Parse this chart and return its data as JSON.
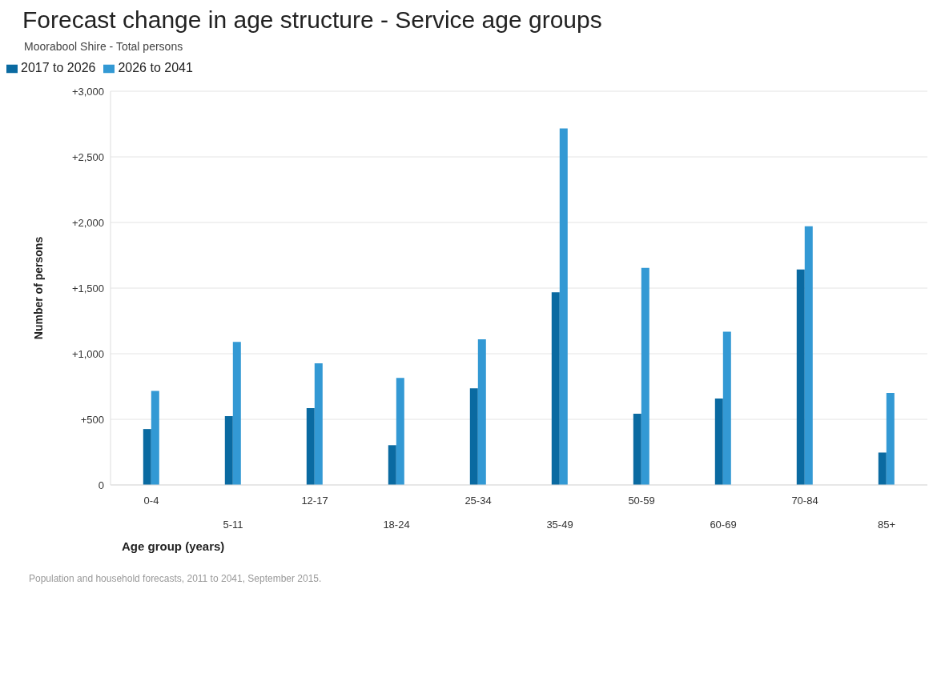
{
  "chart_data": {
    "type": "bar",
    "title": "Forecast change in age structure - Service age groups",
    "subtitle": "Moorabool Shire - Total persons",
    "xlabel": "Age group (years)",
    "ylabel": "Number of persons",
    "categories": [
      "0-4",
      "5-11",
      "12-17",
      "18-24",
      "25-34",
      "35-49",
      "50-59",
      "60-69",
      "70-84",
      "85+"
    ],
    "series": [
      {
        "name": "2017 to 2026",
        "color": "#0a6aa1",
        "values": [
          426,
          524,
          585,
          303,
          736,
          1468,
          543,
          659,
          1642,
          247
        ]
      },
      {
        "name": "2026 to 2041",
        "color": "#3399d4",
        "values": [
          717,
          1090,
          927,
          815,
          1109,
          2716,
          1654,
          1167,
          1971,
          701
        ]
      }
    ],
    "ylim": [
      0,
      3000
    ],
    "yticks": [
      0,
      {
        "value": 500,
        "label": "+500"
      },
      {
        "value": 1000,
        "label": "+1,000"
      },
      {
        "value": 1500,
        "label": "+1,500"
      },
      {
        "value": 2000,
        "label": "+2,000"
      },
      {
        "value": 2500,
        "label": "+2,500"
      },
      {
        "value": 3000,
        "label": "+3,000"
      }
    ],
    "grid": "y",
    "legend": "top left",
    "annotations": [
      "Population and household forecasts, 2011 to 2041, September 2015."
    ]
  }
}
